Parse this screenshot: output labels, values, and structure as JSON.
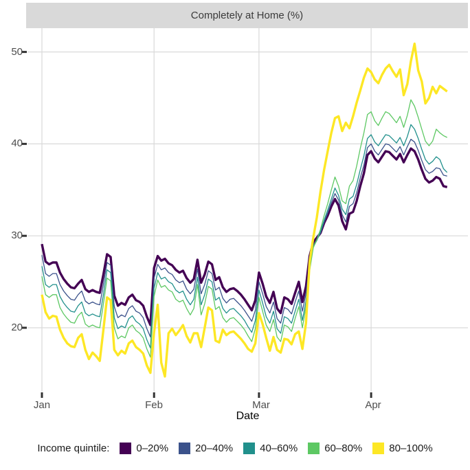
{
  "strip": {
    "title": "Completely at Home (%)"
  },
  "axis": {
    "x_title": "Date",
    "x_tick_labels": [
      "Jan",
      "Feb",
      "Mar",
      "Apr"
    ],
    "y_tick_labels": [
      "20",
      "30",
      "40",
      "50"
    ]
  },
  "legend": {
    "title": "Income quintile:",
    "items": [
      {
        "label": "0–20%",
        "color": "#440154"
      },
      {
        "label": "20–40%",
        "color": "#3B528B"
      },
      {
        "label": "40–60%",
        "color": "#21908C"
      },
      {
        "label": "60–80%",
        "color": "#5DC863"
      },
      {
        "label": "80–100%",
        "color": "#FDE725"
      }
    ]
  },
  "colors": {
    "strip_bg": "#d9d9d9",
    "gridline": "#d9d9d9",
    "tick_mark": "#333333",
    "tick_label": "#4d4d4d"
  },
  "chart_data": {
    "type": "line",
    "title": "Completely at Home (%)",
    "xlabel": "Date",
    "ylabel": "",
    "x_unit": "days since Jan 1 (daily observations, Jan 1 – Apr 22)",
    "x_tick_days": [
      0,
      31,
      60,
      91
    ],
    "x_tick_labels": [
      "Jan",
      "Feb",
      "Mar",
      "Apr"
    ],
    "y_ticks": [
      20,
      30,
      40,
      50
    ],
    "ylim": [
      13,
      52
    ],
    "grid": "major gridlines only, light gray on white panel",
    "legend_position": "bottom",
    "legend_title": "Income quintile:",
    "description": "Percent completely at home by income quintile; weekly zigzag (weekend peaks, holiday spikes Jan 1, Jan 19-20, Feb 16-17, Mar 1); lowest quintile (0-20%) highest and top quintile (80-100%) lowest until lines cross around Mar 15-18, after which 80-100% rises to ~51 peak on Apr 13.",
    "series": [
      {
        "name": "0–20%",
        "color": "#440154",
        "stroke_width": 3.4,
        "values": [
          29.1,
          27.2,
          26.9,
          27.1,
          27.1,
          26.0,
          25.3,
          24.8,
          24.4,
          24.3,
          24.8,
          25.2,
          24.2,
          23.9,
          24.1,
          23.9,
          23.8,
          25.8,
          28.0,
          27.7,
          23.5,
          22.4,
          22.7,
          22.5,
          23.3,
          23.6,
          23.0,
          22.8,
          22.4,
          21.2,
          20.3,
          26.5,
          27.8,
          27.3,
          27.5,
          27.0,
          26.8,
          26.3,
          26.0,
          26.2,
          25.4,
          24.9,
          25.3,
          27.4,
          24.9,
          25.8,
          27.2,
          26.9,
          25.2,
          25.5,
          24.4,
          23.9,
          24.2,
          24.3,
          24.0,
          23.6,
          23.1,
          22.5,
          21.9,
          23.0,
          26.0,
          24.8,
          23.4,
          22.7,
          23.9,
          22.1,
          21.6,
          23.3,
          23.1,
          22.6,
          23.8,
          25.0,
          22.8,
          24.5,
          27.8,
          29.3,
          29.8,
          30.3,
          31.4,
          32.2,
          33.2,
          34.0,
          33.3,
          31.6,
          30.7,
          32.4,
          32.6,
          33.8,
          35.4,
          36.8,
          38.8,
          39.2,
          38.4,
          38.0,
          38.6,
          39.2,
          39.1,
          38.7,
          38.3,
          38.9,
          38.0,
          38.8,
          39.5,
          39.2,
          38.3,
          37.2,
          36.2,
          35.8,
          36.0,
          36.4,
          36.2,
          35.4,
          35.3
        ]
      },
      {
        "name": "20–40%",
        "color": "#3B528B",
        "stroke_width": 1.3,
        "values": [
          27.9,
          25.9,
          25.6,
          25.9,
          25.9,
          24.7,
          24.0,
          23.5,
          23.1,
          23.0,
          23.6,
          24.0,
          22.9,
          22.6,
          22.8,
          22.6,
          22.5,
          24.7,
          27.1,
          26.8,
          22.3,
          21.1,
          21.4,
          21.2,
          22.1,
          22.4,
          21.8,
          21.6,
          21.1,
          19.9,
          19.0,
          25.4,
          26.9,
          26.3,
          26.5,
          26.0,
          25.8,
          25.2,
          24.9,
          25.1,
          24.2,
          23.7,
          24.2,
          26.4,
          23.7,
          24.7,
          26.2,
          25.9,
          24.1,
          24.4,
          23.2,
          22.7,
          23.1,
          23.2,
          22.8,
          22.4,
          21.9,
          21.3,
          20.7,
          21.9,
          25.0,
          23.7,
          22.3,
          21.6,
          22.8,
          21.0,
          20.5,
          22.2,
          22.0,
          21.5,
          22.8,
          24.0,
          21.8,
          23.7,
          27.2,
          29.0,
          29.6,
          30.3,
          31.5,
          32.5,
          33.6,
          34.6,
          33.9,
          32.3,
          31.5,
          33.2,
          33.5,
          34.7,
          36.3,
          37.7,
          39.6,
          40.0,
          39.2,
          38.8,
          39.4,
          40.0,
          39.9,
          39.5,
          39.1,
          39.7,
          38.8,
          39.7,
          40.5,
          40.2,
          39.3,
          38.2,
          37.2,
          36.8,
          37.0,
          37.4,
          37.3,
          36.6,
          36.5
        ]
      },
      {
        "name": "40–60%",
        "color": "#21908C",
        "stroke_width": 1.3,
        "values": [
          26.7,
          24.7,
          24.4,
          24.7,
          24.7,
          23.4,
          22.7,
          22.2,
          21.8,
          21.7,
          22.4,
          22.8,
          21.6,
          21.3,
          21.5,
          21.3,
          21.2,
          23.6,
          26.3,
          26.0,
          21.1,
          19.9,
          20.2,
          20.0,
          21.0,
          21.3,
          20.7,
          20.4,
          19.9,
          18.7,
          17.8,
          24.3,
          26.0,
          25.3,
          25.5,
          25.0,
          24.8,
          24.1,
          23.8,
          24.0,
          23.1,
          22.5,
          23.1,
          25.5,
          22.5,
          23.6,
          25.3,
          25.0,
          23.0,
          23.3,
          22.1,
          21.6,
          22.0,
          22.1,
          21.7,
          21.3,
          20.8,
          20.1,
          19.5,
          20.8,
          24.1,
          22.7,
          21.2,
          20.5,
          21.8,
          19.9,
          19.4,
          21.2,
          21.0,
          20.5,
          21.8,
          23.1,
          20.8,
          22.9,
          26.6,
          28.8,
          29.5,
          30.4,
          31.7,
          32.8,
          34.0,
          35.2,
          34.4,
          32.9,
          32.3,
          34.0,
          34.3,
          35.6,
          37.2,
          38.7,
          40.6,
          41.0,
          40.2,
          39.8,
          40.4,
          41.0,
          40.9,
          40.5,
          40.1,
          40.7,
          39.8,
          40.8,
          42.1,
          41.6,
          40.6,
          39.4,
          38.3,
          37.8,
          38.1,
          38.6,
          38.3,
          37.3,
          36.9
        ]
      },
      {
        "name": "60–80%",
        "color": "#5DC863",
        "stroke_width": 1.3,
        "values": [
          25.6,
          23.6,
          23.3,
          23.6,
          23.6,
          22.2,
          21.5,
          21.0,
          20.6,
          20.5,
          21.3,
          21.7,
          20.4,
          20.1,
          20.3,
          20.1,
          20.0,
          22.6,
          25.4,
          25.1,
          20.0,
          18.8,
          19.1,
          18.9,
          20.0,
          20.3,
          19.7,
          19.4,
          18.9,
          17.7,
          16.8,
          23.4,
          25.2,
          24.4,
          24.6,
          24.1,
          23.9,
          23.1,
          22.8,
          23.0,
          22.1,
          21.4,
          22.1,
          24.7,
          21.4,
          22.6,
          24.5,
          24.2,
          22.0,
          22.3,
          21.1,
          20.6,
          21.0,
          21.1,
          20.7,
          20.3,
          19.8,
          19.1,
          18.5,
          19.9,
          23.3,
          21.8,
          20.3,
          19.6,
          20.9,
          19.0,
          18.5,
          20.3,
          20.1,
          19.6,
          21.0,
          22.3,
          20.0,
          22.3,
          26.2,
          28.7,
          29.6,
          30.7,
          32.2,
          33.5,
          35.0,
          36.4,
          35.4,
          33.8,
          33.5,
          35.4,
          36.0,
          37.6,
          39.5,
          41.2,
          43.2,
          43.5,
          42.5,
          42.0,
          42.8,
          43.5,
          43.3,
          42.8,
          42.3,
          43.0,
          41.8,
          43.1,
          44.8,
          44.1,
          42.9,
          41.6,
          40.3,
          39.8,
          40.3,
          41.6,
          41.2,
          40.9,
          40.7
        ]
      },
      {
        "name": "80–100%",
        "color": "#FDE725",
        "stroke_width": 3.4,
        "values": [
          23.6,
          21.7,
          21.0,
          21.3,
          21.2,
          19.8,
          18.9,
          18.3,
          18.0,
          17.9,
          18.9,
          19.3,
          17.6,
          16.6,
          17.3,
          16.9,
          16.4,
          19.8,
          23.3,
          23.0,
          17.6,
          17.0,
          17.5,
          17.2,
          18.3,
          18.6,
          17.9,
          17.6,
          17.2,
          15.9,
          15.1,
          19.5,
          22.5,
          16.2,
          14.7,
          19.4,
          19.9,
          19.2,
          19.7,
          20.3,
          19.1,
          18.4,
          19.4,
          19.4,
          17.9,
          20.0,
          22.2,
          21.9,
          18.6,
          18.4,
          19.8,
          19.2,
          19.5,
          19.6,
          19.2,
          18.8,
          18.3,
          17.7,
          17.4,
          18.3,
          21.6,
          20.4,
          18.9,
          17.5,
          19.0,
          17.6,
          17.3,
          18.8,
          18.7,
          18.2,
          19.3,
          19.6,
          17.7,
          20.5,
          27.2,
          29.8,
          32.0,
          34.8,
          37.2,
          39.2,
          41.2,
          42.8,
          43.0,
          41.4,
          42.3,
          41.7,
          43.0,
          44.5,
          45.8,
          47.2,
          48.2,
          47.8,
          47.0,
          46.6,
          47.5,
          48.2,
          48.6,
          47.9,
          47.3,
          48.1,
          45.3,
          46.5,
          49.0,
          50.9,
          48.0,
          46.8,
          44.4,
          45.0,
          46.2,
          45.5,
          46.3,
          46.0,
          45.7
        ]
      }
    ]
  }
}
